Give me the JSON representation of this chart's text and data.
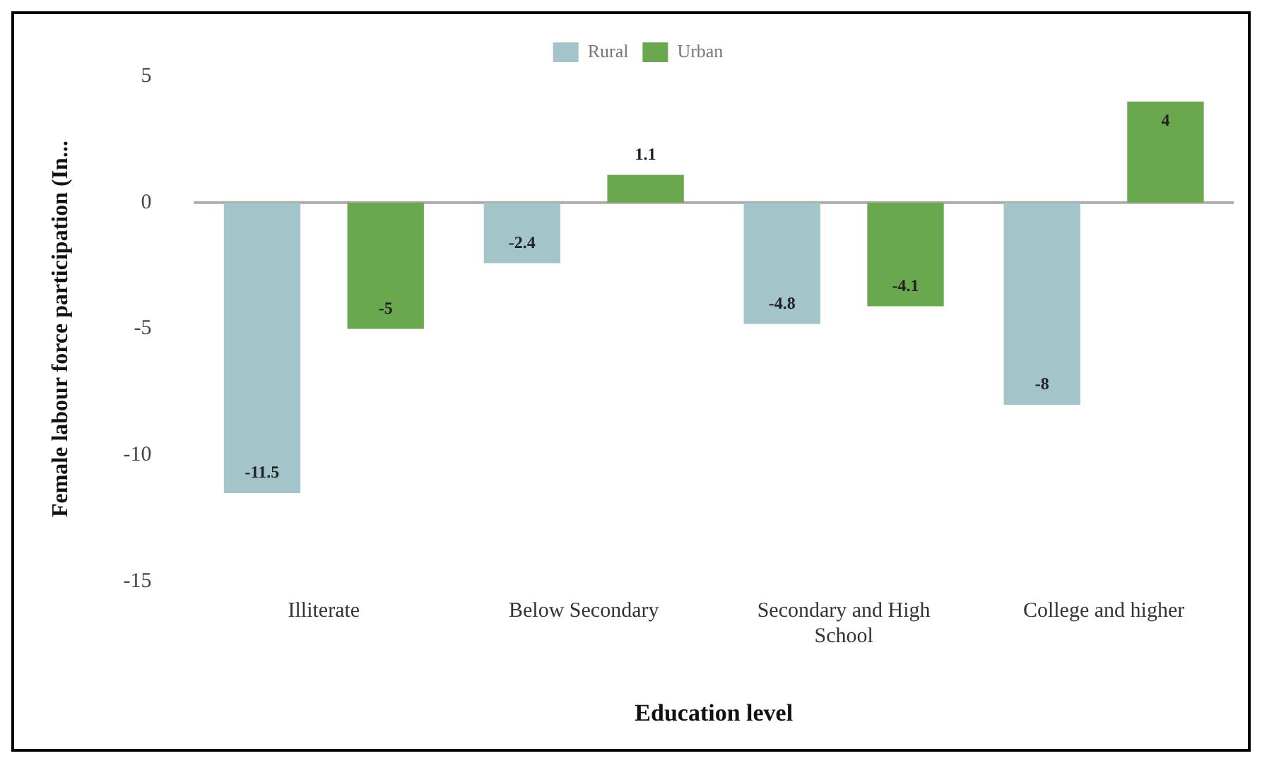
{
  "chart_data": {
    "type": "bar",
    "xlabel": "Education level",
    "ylabel": "Female labour force participation (In...",
    "categories": [
      "Illiterate",
      "Below Secondary",
      "Secondary and High School",
      "College and higher"
    ],
    "series": [
      {
        "name": "Rural",
        "color": "#a3c4c9",
        "values": [
          -11.5,
          -2.4,
          -4.8,
          -8
        ]
      },
      {
        "name": "Urban",
        "color": "#6aa84f",
        "values": [
          -5,
          1.1,
          -4.1,
          4
        ]
      }
    ],
    "ylim": [
      -15,
      5
    ],
    "yticks": [
      -15,
      -10,
      -5,
      0,
      5
    ],
    "grid": false,
    "ref_lines": [
      {
        "axis": "y",
        "value": 0,
        "color": "#aaaaaa"
      }
    ],
    "legend": "top",
    "data_labels": true
  }
}
